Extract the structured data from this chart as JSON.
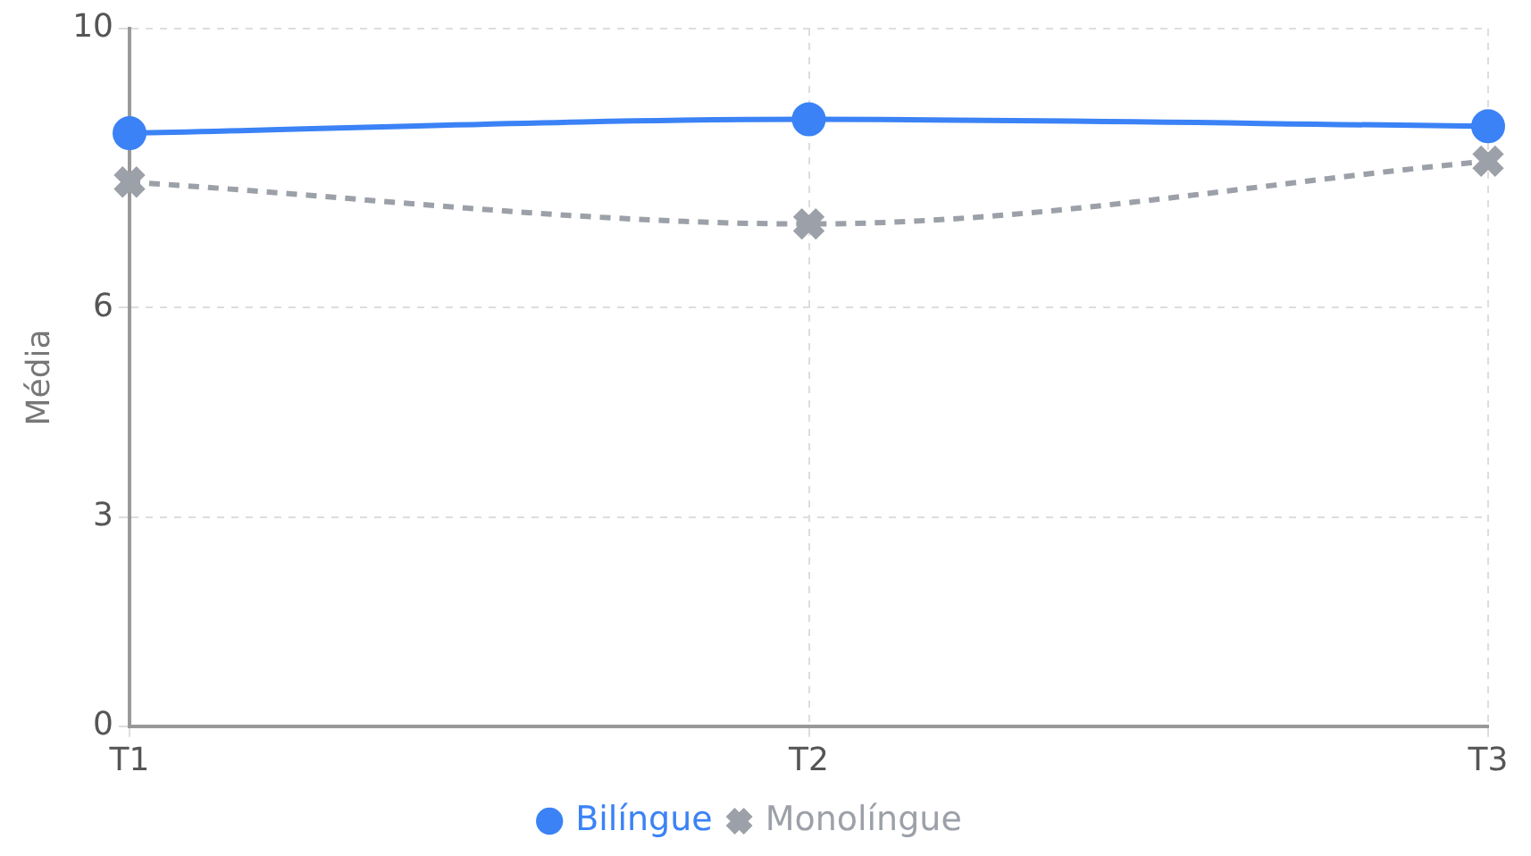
{
  "chart_data": {
    "type": "line",
    "ylabel": "Média",
    "categories": [
      "T1",
      "T2",
      "T3"
    ],
    "series": [
      {
        "name": "Bilíngue",
        "color": "#3b82f6",
        "values": [
          8.5,
          8.7,
          8.6
        ],
        "marker": "circle",
        "line_style": "solid"
      },
      {
        "name": "Monolíngue",
        "color": "#9ca0a8",
        "values": [
          7.8,
          7.2,
          8.1
        ],
        "marker": "cross",
        "line_style": "dashed"
      }
    ],
    "ylim": [
      0,
      10
    ],
    "yticks": [
      0,
      3,
      6,
      10
    ],
    "grid": true,
    "legend": "bottom"
  }
}
